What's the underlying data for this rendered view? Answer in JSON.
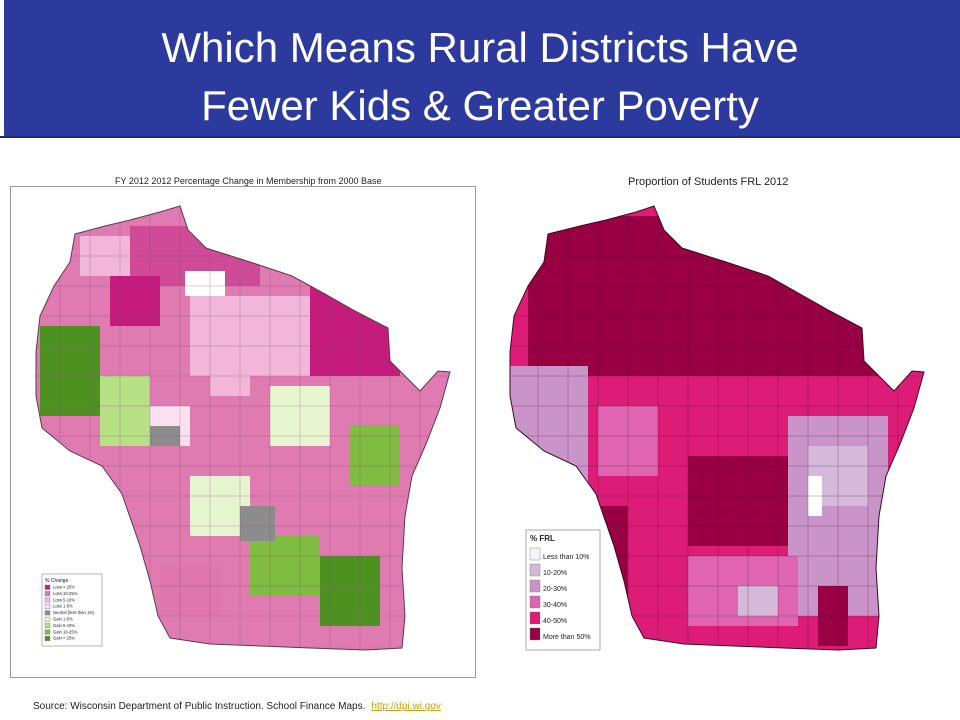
{
  "title": {
    "line1": "Which Means Rural Districts Have",
    "line2": "Fewer Kids & Greater Poverty"
  },
  "left_map": {
    "title": "FY 2012 2012 Percentage Change in Membership from 2000 Base",
    "legend_title": "% Change",
    "legend": [
      {
        "label": "Loss > 25%",
        "color": "#c51b7d"
      },
      {
        "label": "Loss 10-25%",
        "color": "#de77ae"
      },
      {
        "label": "Loss 5-10%",
        "color": "#f1b6da"
      },
      {
        "label": "Loss 1-5%",
        "color": "#fde0ef"
      },
      {
        "label": "Neutral (less than 1%)",
        "color": "#8c8c8c"
      },
      {
        "label": "Gain 1-5%",
        "color": "#e6f5d0"
      },
      {
        "label": "Gain 5-10%",
        "color": "#b8e186"
      },
      {
        "label": "Gain 10-25%",
        "color": "#7fbc41"
      },
      {
        "label": "Gain > 25%",
        "color": "#4d9221"
      }
    ]
  },
  "right_map": {
    "title": "Proportion of Students FRL 2012",
    "legend_title": "% FRL",
    "legend": [
      {
        "label": "Less than 10%",
        "color": "#f7f4f9"
      },
      {
        "label": "10-20%",
        "color": "#d4b9da"
      },
      {
        "label": "20-30%",
        "color": "#c994c7"
      },
      {
        "label": "30-40%",
        "color": "#df65b0"
      },
      {
        "label": "40-50%",
        "color": "#dd1c77"
      },
      {
        "label": "More than 50%",
        "color": "#980043"
      }
    ]
  },
  "source": {
    "text": "Source: Wisconsin Department of Public Instruction. School Finance Maps.",
    "link": "http://dpi.wi.gov"
  }
}
